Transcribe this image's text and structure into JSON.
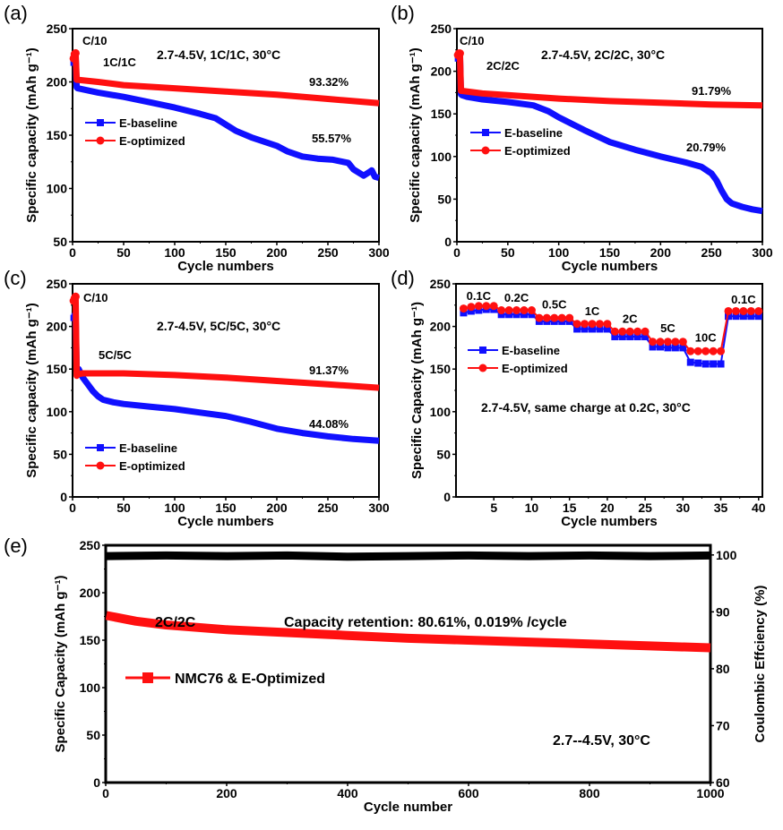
{
  "colors": {
    "baseline": "#1010ff",
    "optimized": "#ff1010",
    "ce": "#000000",
    "axis": "#000000"
  },
  "chart_data": [
    {
      "id": "a",
      "type": "line",
      "panel_label": "(a)",
      "title": "",
      "condition": "2.7-4.5V, 1C/1C, 30°C",
      "xlabel": "Cycle numbers",
      "ylabel": "Specific capacity (mAh g⁻¹)",
      "xlim": [
        0,
        300
      ],
      "ylim": [
        50,
        250
      ],
      "xticks": [
        0,
        50,
        100,
        150,
        200,
        250,
        300
      ],
      "yticks": [
        50,
        100,
        150,
        200,
        250
      ],
      "legend": [
        "E-baseline",
        "E-optimized"
      ],
      "legend_position": "center-left",
      "annotations": [
        {
          "text": "C/10",
          "x": 4,
          "y": 233
        },
        {
          "text": "1C/1C",
          "x": 25,
          "y": 213
        },
        {
          "text": "93.32%",
          "x": 262,
          "y": 196
        },
        {
          "text": "55.57%",
          "x": 262,
          "y": 143
        }
      ],
      "series": [
        {
          "name": "E-baseline",
          "x": [
            1,
            2,
            3,
            4,
            5,
            25,
            50,
            75,
            100,
            125,
            140,
            150,
            160,
            175,
            200,
            210,
            225,
            240,
            255,
            265,
            270,
            275,
            280,
            285,
            290,
            293,
            296,
            300
          ],
          "y": [
            218,
            222,
            224,
            195,
            194,
            190,
            186,
            181,
            176,
            170,
            166,
            160,
            154,
            148,
            140,
            135,
            130,
            128,
            127,
            125,
            124,
            118,
            115,
            112,
            115,
            117,
            111,
            110
          ]
        },
        {
          "name": "E-optimized",
          "x": [
            1,
            2,
            3,
            4,
            5,
            25,
            50,
            100,
            150,
            200,
            250,
            300
          ],
          "y": [
            222,
            226,
            227,
            202,
            202,
            200,
            197,
            194,
            191,
            188,
            184,
            180
          ]
        }
      ]
    },
    {
      "id": "b",
      "type": "line",
      "panel_label": "(b)",
      "title": "",
      "condition": "2.7-4.5V, 2C/2C, 30°C",
      "xlabel": "Cycle numbers",
      "ylabel": "Specific capacity (mAh g⁻¹)",
      "xlim": [
        0,
        300
      ],
      "ylim": [
        0,
        250
      ],
      "xticks": [
        0,
        50,
        100,
        150,
        200,
        250,
        300
      ],
      "yticks": [
        0,
        50,
        100,
        150,
        200,
        250
      ],
      "legend": [
        "E-baseline",
        "E-optimized"
      ],
      "legend_position": "center-left",
      "annotations": [
        {
          "text": "C/10",
          "x": 4,
          "y": 232
        },
        {
          "text": "2C/2C",
          "x": 30,
          "y": 203
        },
        {
          "text": "91.79%",
          "x": 262,
          "y": 175
        },
        {
          "text": "20.79%",
          "x": 262,
          "y": 107
        }
      ],
      "series": [
        {
          "name": "E-baseline",
          "x": [
            1,
            2,
            3,
            4,
            5,
            10,
            25,
            50,
            75,
            90,
            100,
            125,
            150,
            175,
            200,
            225,
            240,
            250,
            255,
            260,
            265,
            270,
            280,
            290,
            300
          ],
          "y": [
            215,
            218,
            220,
            173,
            172,
            170,
            167,
            164,
            160,
            153,
            146,
            131,
            117,
            108,
            100,
            93,
            88,
            80,
            72,
            60,
            50,
            45,
            41,
            38,
            36
          ]
        },
        {
          "name": "E-optimized",
          "x": [
            1,
            2,
            3,
            4,
            5,
            25,
            50,
            100,
            150,
            200,
            250,
            300
          ],
          "y": [
            219,
            221,
            221,
            177,
            177,
            174,
            172,
            168,
            165,
            163,
            161,
            160
          ]
        }
      ]
    },
    {
      "id": "c",
      "type": "line",
      "panel_label": "(c)",
      "title": "",
      "condition": "2.7-4.5V, 5C/5C, 30°C",
      "xlabel": "Cycle numbers",
      "ylabel": "Specific capacity (mAh g⁻¹)",
      "xlim": [
        0,
        300
      ],
      "ylim": [
        0,
        250
      ],
      "xticks": [
        0,
        50,
        100,
        150,
        200,
        250,
        300
      ],
      "yticks": [
        0,
        50,
        100,
        150,
        200,
        250
      ],
      "legend": [
        "E-baseline",
        "E-optimized"
      ],
      "legend_position": "bottom-left",
      "annotations": [
        {
          "text": "C/10",
          "x": 10,
          "y": 232
        },
        {
          "text": "5C/5C",
          "x": 25,
          "y": 167
        },
        {
          "text": "91.37%",
          "x": 262,
          "y": 148
        },
        {
          "text": "44.08%",
          "x": 262,
          "y": 86
        }
      ],
      "series": [
        {
          "name": "E-baseline",
          "x": [
            1,
            2,
            3,
            4,
            5,
            6,
            10,
            15,
            20,
            25,
            30,
            40,
            50,
            75,
            100,
            125,
            150,
            175,
            200,
            225,
            250,
            275,
            300
          ],
          "y": [
            210,
            212,
            213,
            148,
            150,
            150,
            140,
            132,
            124,
            118,
            114,
            111,
            109,
            106,
            103,
            99,
            95,
            88,
            80,
            75,
            71,
            68,
            66
          ]
        },
        {
          "name": "E-optimized",
          "x": [
            1,
            2,
            3,
            4,
            5,
            10,
            25,
            50,
            100,
            150,
            200,
            250,
            300
          ],
          "y": [
            230,
            233,
            235,
            142,
            144,
            145,
            145,
            145,
            143,
            140,
            136,
            132,
            128
          ]
        }
      ]
    },
    {
      "id": "d",
      "type": "line",
      "panel_label": "(d)",
      "title": "",
      "condition": "2.7-4.5V, same charge at 0.2C, 30°C",
      "xlabel": "Cycle numbers",
      "ylabel": "Specific Capacity (mAh g⁻¹)",
      "xlim": [
        0,
        40.5
      ],
      "ylim": [
        0,
        250
      ],
      "xticks": [
        5,
        10,
        15,
        20,
        25,
        30,
        35,
        40
      ],
      "yticks": [
        0,
        50,
        100,
        150,
        200,
        250
      ],
      "legend": [
        "E-baseline",
        "E-optimized"
      ],
      "legend_position": "center-left",
      "rate_labels": [
        {
          "text": "0.1C",
          "x": 3,
          "y": 229
        },
        {
          "text": "0.2C",
          "x": 8,
          "y": 227
        },
        {
          "text": "0.5C",
          "x": 13,
          "y": 219
        },
        {
          "text": "1C",
          "x": 18,
          "y": 211
        },
        {
          "text": "2C",
          "x": 23,
          "y": 202
        },
        {
          "text": "5C",
          "x": 28,
          "y": 191
        },
        {
          "text": "10C",
          "x": 33,
          "y": 180
        },
        {
          "text": "0.1C",
          "x": 38,
          "y": 225
        }
      ],
      "series": [
        {
          "name": "E-baseline",
          "x": [
            1,
            2,
            3,
            4,
            5,
            6,
            7,
            8,
            9,
            10,
            11,
            12,
            13,
            14,
            15,
            16,
            17,
            18,
            19,
            20,
            21,
            22,
            23,
            24,
            25,
            26,
            27,
            28,
            29,
            30,
            31,
            32,
            33,
            34,
            35,
            36,
            37,
            38,
            39,
            40
          ],
          "y": [
            216,
            218,
            219,
            220,
            220,
            214,
            214,
            214,
            214,
            214,
            206,
            206,
            206,
            206,
            206,
            197,
            197,
            197,
            197,
            197,
            188,
            188,
            188,
            188,
            188,
            176,
            176,
            175,
            175,
            175,
            158,
            157,
            156,
            156,
            156,
            212,
            212,
            212,
            212,
            212
          ]
        },
        {
          "name": "E-optimized",
          "x": [
            1,
            2,
            3,
            4,
            5,
            6,
            7,
            8,
            9,
            10,
            11,
            12,
            13,
            14,
            15,
            16,
            17,
            18,
            19,
            20,
            21,
            22,
            23,
            24,
            25,
            26,
            27,
            28,
            29,
            30,
            31,
            32,
            33,
            34,
            35,
            36,
            37,
            38,
            39,
            40
          ],
          "y": [
            221,
            223,
            224,
            224,
            224,
            219,
            219,
            219,
            219,
            219,
            210,
            210,
            210,
            210,
            210,
            203,
            203,
            203,
            203,
            203,
            194,
            194,
            194,
            194,
            194,
            182,
            182,
            182,
            182,
            182,
            171,
            171,
            171,
            171,
            171,
            218,
            218,
            218,
            218,
            218
          ]
        }
      ]
    },
    {
      "id": "e",
      "type": "line",
      "panel_label": "(e)",
      "title": "",
      "xlabel": "Cycle number",
      "ylabel": "Specific Capacity (mAh g⁻¹)",
      "y2label": "Coulombic Effciency (%)",
      "xlim": [
        0,
        1000
      ],
      "ylim": [
        0,
        250
      ],
      "y2lim": [
        60,
        101.7
      ],
      "xticks": [
        0,
        200,
        400,
        600,
        800,
        1000
      ],
      "yticks": [
        0,
        50,
        100,
        150,
        200,
        250
      ],
      "y2ticks": [
        60,
        70,
        80,
        90,
        100
      ],
      "legend": [
        "NMC76 & E-Optimized"
      ],
      "legend_position": "center-left",
      "annotations": [
        {
          "text": "2C/2C",
          "x": 175,
          "y": 198
        },
        {
          "text": "Capacity retention: 80.61%, 0.019% /cycle",
          "x": 600,
          "y": 198
        },
        {
          "text": "2.7--4.5V, 30°C",
          "x": 850,
          "y": 45
        }
      ],
      "series": [
        {
          "name": "NMC76 & E-Optimized",
          "axis": "left",
          "x": [
            1,
            50,
            100,
            200,
            300,
            400,
            500,
            600,
            700,
            800,
            900,
            1000
          ],
          "y": [
            176,
            170,
            166,
            161,
            158,
            155,
            152,
            150,
            148,
            146,
            144,
            142
          ]
        },
        {
          "name": "Coulombic Efficiency",
          "axis": "right",
          "x": [
            1,
            100,
            200,
            300,
            400,
            500,
            600,
            700,
            800,
            900,
            1000
          ],
          "y": [
            99.8,
            99.9,
            99.8,
            99.9,
            99.7,
            99.8,
            99.9,
            99.8,
            99.9,
            99.8,
            99.9
          ]
        }
      ]
    }
  ]
}
